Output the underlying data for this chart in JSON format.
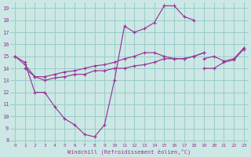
{
  "bg_color": "#cce8e4",
  "line_color": "#993399",
  "grid_color": "#99cccc",
  "xlabel": "Windchill (Refroidissement éolien,°C)",
  "xlabel_color": "#993399",
  "ylabel_ticks": [
    8,
    9,
    10,
    11,
    12,
    13,
    14,
    15,
    16,
    17,
    18,
    19
  ],
  "xlabel_ticks": [
    0,
    1,
    2,
    3,
    4,
    5,
    6,
    7,
    8,
    9,
    10,
    11,
    12,
    13,
    14,
    15,
    16,
    17,
    18,
    19,
    20,
    21,
    22,
    23
  ],
  "xmin": -0.5,
  "xmax": 23.5,
  "ymin": 7.8,
  "ymax": 19.5,
  "series": [
    {
      "x": [
        0,
        1,
        2,
        3,
        4,
        5,
        6,
        7,
        8,
        9,
        10,
        11,
        12,
        13,
        14,
        15,
        16,
        17,
        18
      ],
      "y": [
        15.0,
        14.5,
        12.0,
        12.0,
        10.8,
        9.8,
        9.3,
        8.5,
        8.3,
        9.3,
        13.0,
        17.5,
        17.0,
        17.3,
        17.8,
        19.2,
        19.2,
        18.3,
        18.0
      ]
    },
    {
      "x": [
        0,
        1,
        2,
        3,
        4,
        5,
        6,
        7,
        8,
        9,
        10,
        11,
        12,
        13,
        14,
        15,
        16,
        17,
        18,
        19
      ],
      "y": [
        15.0,
        14.3,
        13.3,
        13.3,
        13.5,
        13.7,
        13.8,
        14.0,
        14.2,
        14.3,
        14.5,
        14.8,
        15.0,
        15.3,
        15.3,
        15.0,
        14.8,
        14.8,
        15.0,
        15.3
      ]
    },
    {
      "x": [
        1,
        2,
        3,
        4,
        5,
        6,
        7,
        8,
        9,
        10,
        11,
        12,
        13,
        14,
        15,
        16,
        17,
        18,
        19
      ],
      "y": [
        14.0,
        13.3,
        13.0,
        13.2,
        13.3,
        13.5,
        13.5,
        13.8,
        13.8,
        14.0,
        14.0,
        14.2,
        14.3,
        14.5,
        14.8,
        14.8,
        14.8,
        15.0,
        15.3
      ]
    },
    {
      "x": [
        19,
        20,
        21,
        22,
        23
      ],
      "y": [
        14.8,
        15.0,
        14.6,
        14.8,
        15.7
      ]
    },
    {
      "x": [
        19,
        20,
        21,
        22,
        23
      ],
      "y": [
        14.0,
        14.0,
        14.5,
        14.7,
        15.6
      ]
    }
  ]
}
